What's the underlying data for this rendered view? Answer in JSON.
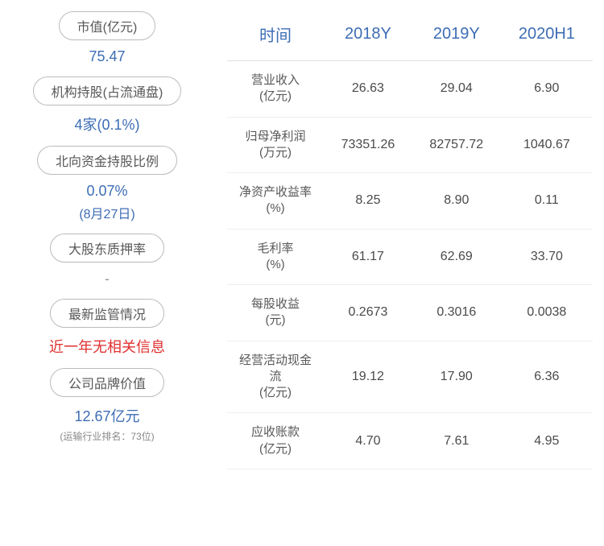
{
  "left_cards": [
    {
      "label": "市值(亿元)",
      "value": "75.47",
      "value_color": "#3d6db5"
    },
    {
      "label": "机构持股(占流通盘)",
      "value": "4家(0.1%)",
      "value_color": "#3d6db5"
    },
    {
      "label": "北向资金持股比例",
      "value": "0.07%",
      "sub": "(8月27日)",
      "value_color": "#3d6db5"
    },
    {
      "label": "大股东质押率",
      "value": "-",
      "value_color": "#999999"
    },
    {
      "label": "最新监管情况",
      "value": "近一年无相关信息",
      "value_color": "#e03030"
    },
    {
      "label": "公司品牌价值",
      "value": "12.67亿元",
      "note": "(运输行业排名：73位)",
      "value_color": "#3d6db5"
    }
  ],
  "table": {
    "columns": [
      "时间",
      "2018Y",
      "2019Y",
      "2020H1"
    ],
    "rows": [
      {
        "name": "营业收入",
        "unit": "(亿元)",
        "values": [
          "26.63",
          "29.04",
          "6.90"
        ]
      },
      {
        "name": "归母净利润",
        "unit": "(万元)",
        "values": [
          "73351.26",
          "82757.72",
          "1040.67"
        ]
      },
      {
        "name": "净资产收益率",
        "unit": "(%)",
        "values": [
          "8.25",
          "8.90",
          "0.11"
        ]
      },
      {
        "name": "毛利率",
        "unit": "(%)",
        "values": [
          "61.17",
          "62.69",
          "33.70"
        ]
      },
      {
        "name": "每股收益",
        "unit": "(元)",
        "values": [
          "0.2673",
          "0.3016",
          "0.0038"
        ]
      },
      {
        "name": "经营活动现金流",
        "unit": "(亿元)",
        "values": [
          "19.12",
          "17.90",
          "6.36"
        ]
      },
      {
        "name": "应收账款",
        "unit": "(亿元)",
        "values": [
          "4.70",
          "7.61",
          "4.95"
        ]
      }
    ]
  }
}
